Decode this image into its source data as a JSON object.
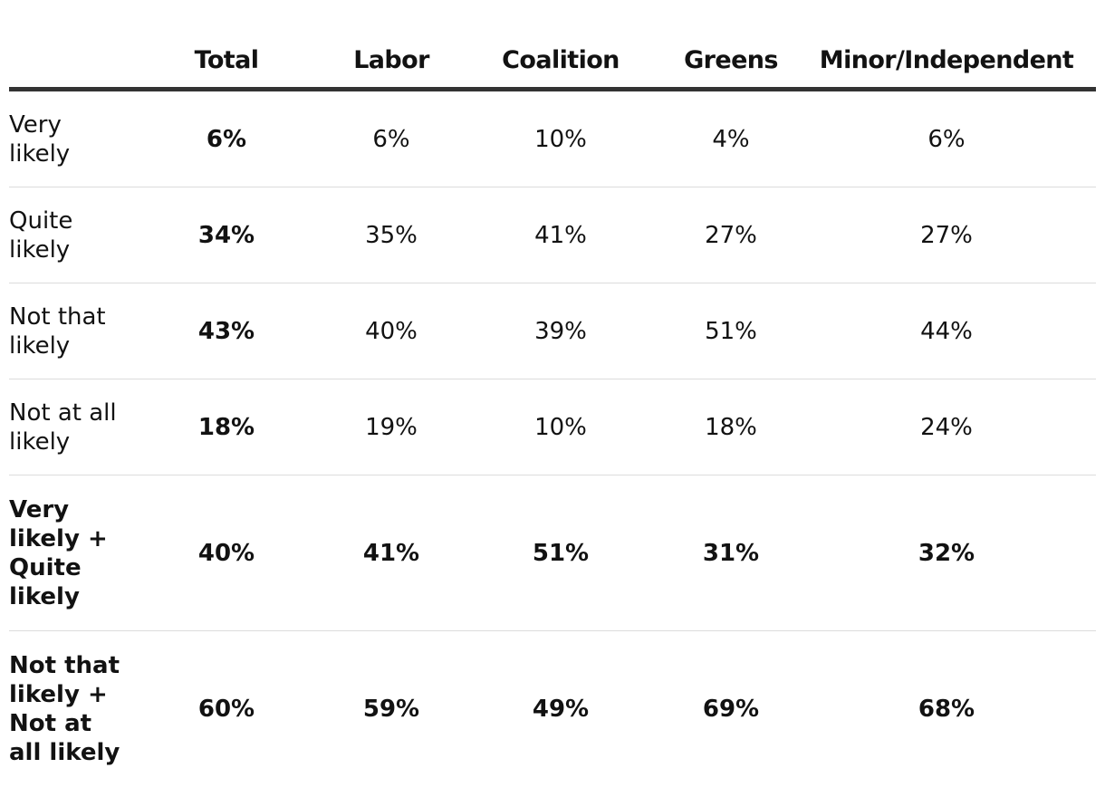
{
  "chart_data": {
    "type": "table",
    "columns": [
      "",
      "Total",
      "Labor",
      "Coalition",
      "Greens",
      "Minor/Independent"
    ],
    "rows": [
      {
        "label": "Very likely",
        "values": [
          "6%",
          "6%",
          "10%",
          "4%",
          "6%"
        ],
        "summary": false
      },
      {
        "label": "Quite likely",
        "values": [
          "34%",
          "35%",
          "41%",
          "27%",
          "27%"
        ],
        "summary": false
      },
      {
        "label": "Not that likely",
        "values": [
          "43%",
          "40%",
          "39%",
          "51%",
          "44%"
        ],
        "summary": false
      },
      {
        "label": "Not at all likely",
        "values": [
          "18%",
          "19%",
          "10%",
          "18%",
          "24%"
        ],
        "summary": false
      },
      {
        "label": "Very likely + Quite likely",
        "values": [
          "40%",
          "41%",
          "51%",
          "31%",
          "32%"
        ],
        "summary": true
      },
      {
        "label": "Not that likely + Not at all likely",
        "values": [
          "60%",
          "59%",
          "49%",
          "69%",
          "68%"
        ],
        "summary": true
      }
    ],
    "header_rule_color": "#333333",
    "row_divider_color": "#dcdcdc",
    "text_color": "#121212"
  }
}
